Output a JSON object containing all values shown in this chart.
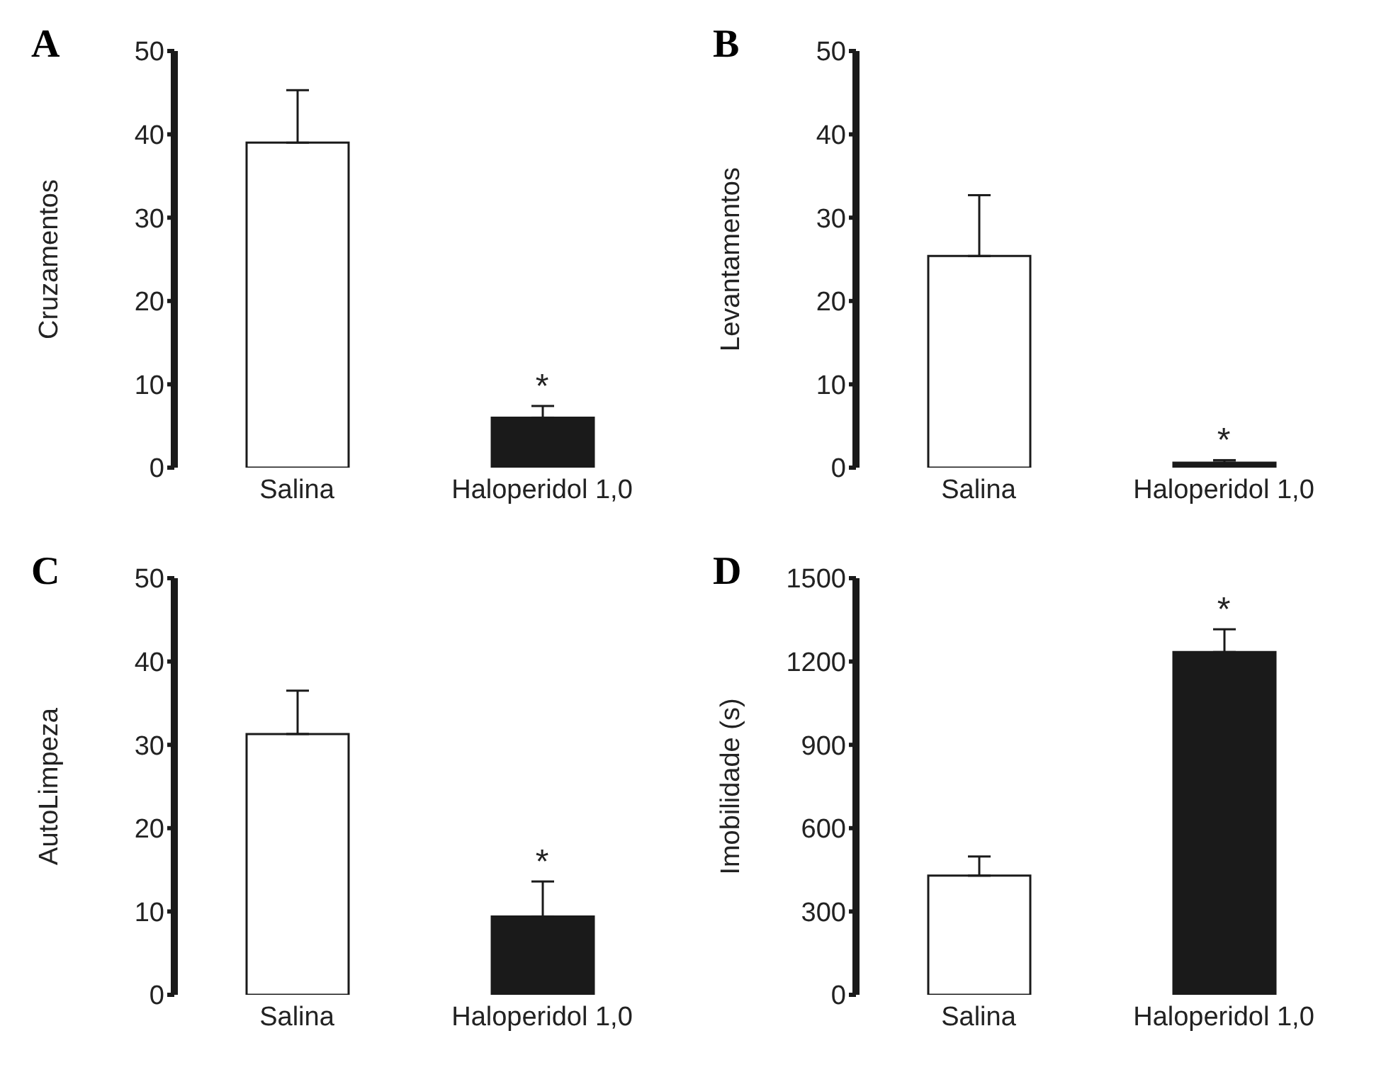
{
  "chart_data": [
    {
      "type": "bar",
      "title": "A",
      "ylabel": "Cruzamentos",
      "categories": [
        "Salina",
        "Haloperidol 1,0"
      ],
      "values": [
        39,
        6.0
      ],
      "colors": [
        "#ffffff",
        "#1a1a1a"
      ],
      "errors": [
        [
          39,
          45.3
        ],
        [
          6.0,
          7.4
        ]
      ],
      "ylim": [
        0,
        50
      ],
      "yticks": [
        0,
        10,
        20,
        30,
        40,
        50
      ],
      "annotations": [
        {
          "text": "*",
          "x": "Haloperidol 1,0",
          "y": 7.4
        }
      ]
    },
    {
      "type": "bar",
      "title": "B",
      "ylabel": "Levantamentos",
      "categories": [
        "Salina",
        "Haloperidol 1,0"
      ],
      "values": [
        25.4,
        0.6
      ],
      "colors": [
        "#ffffff",
        "#1a1a1a"
      ],
      "errors": [
        [
          25.4,
          32.7
        ],
        [
          0.6,
          0.9
        ]
      ],
      "ylim": [
        0,
        50
      ],
      "yticks": [
        0,
        10,
        20,
        30,
        40,
        50
      ],
      "annotations": [
        {
          "text": "*",
          "x": "Haloperidol 1,0",
          "y": 0.9
        }
      ]
    },
    {
      "type": "bar",
      "title": "C",
      "ylabel": "AutoLimpeza",
      "categories": [
        "Salina",
        "Haloperidol 1,0"
      ],
      "values": [
        31.3,
        9.4
      ],
      "colors": [
        "#ffffff",
        "#1a1a1a"
      ],
      "errors": [
        [
          31.3,
          36.5
        ],
        [
          9.4,
          13.6
        ]
      ],
      "ylim": [
        0,
        50
      ],
      "yticks": [
        0,
        10,
        20,
        30,
        40,
        50
      ],
      "annotations": [
        {
          "text": "*",
          "x": "Haloperidol 1,0",
          "y": 13.6
        }
      ]
    },
    {
      "type": "bar",
      "title": "D",
      "ylabel": "Imobilidade (s)",
      "categories": [
        "Salina",
        "Haloperidol 1,0"
      ],
      "values": [
        429,
        1234
      ],
      "colors": [
        "#ffffff",
        "#1a1a1a"
      ],
      "errors": [
        [
          429,
          498
        ],
        [
          1234,
          1316
        ]
      ],
      "ylim": [
        0,
        1500
      ],
      "yticks": [
        0,
        300,
        600,
        900,
        1200,
        1500
      ],
      "annotations": [
        {
          "text": "*",
          "x": "Haloperidol 1,0",
          "y": 1316
        }
      ]
    }
  ]
}
